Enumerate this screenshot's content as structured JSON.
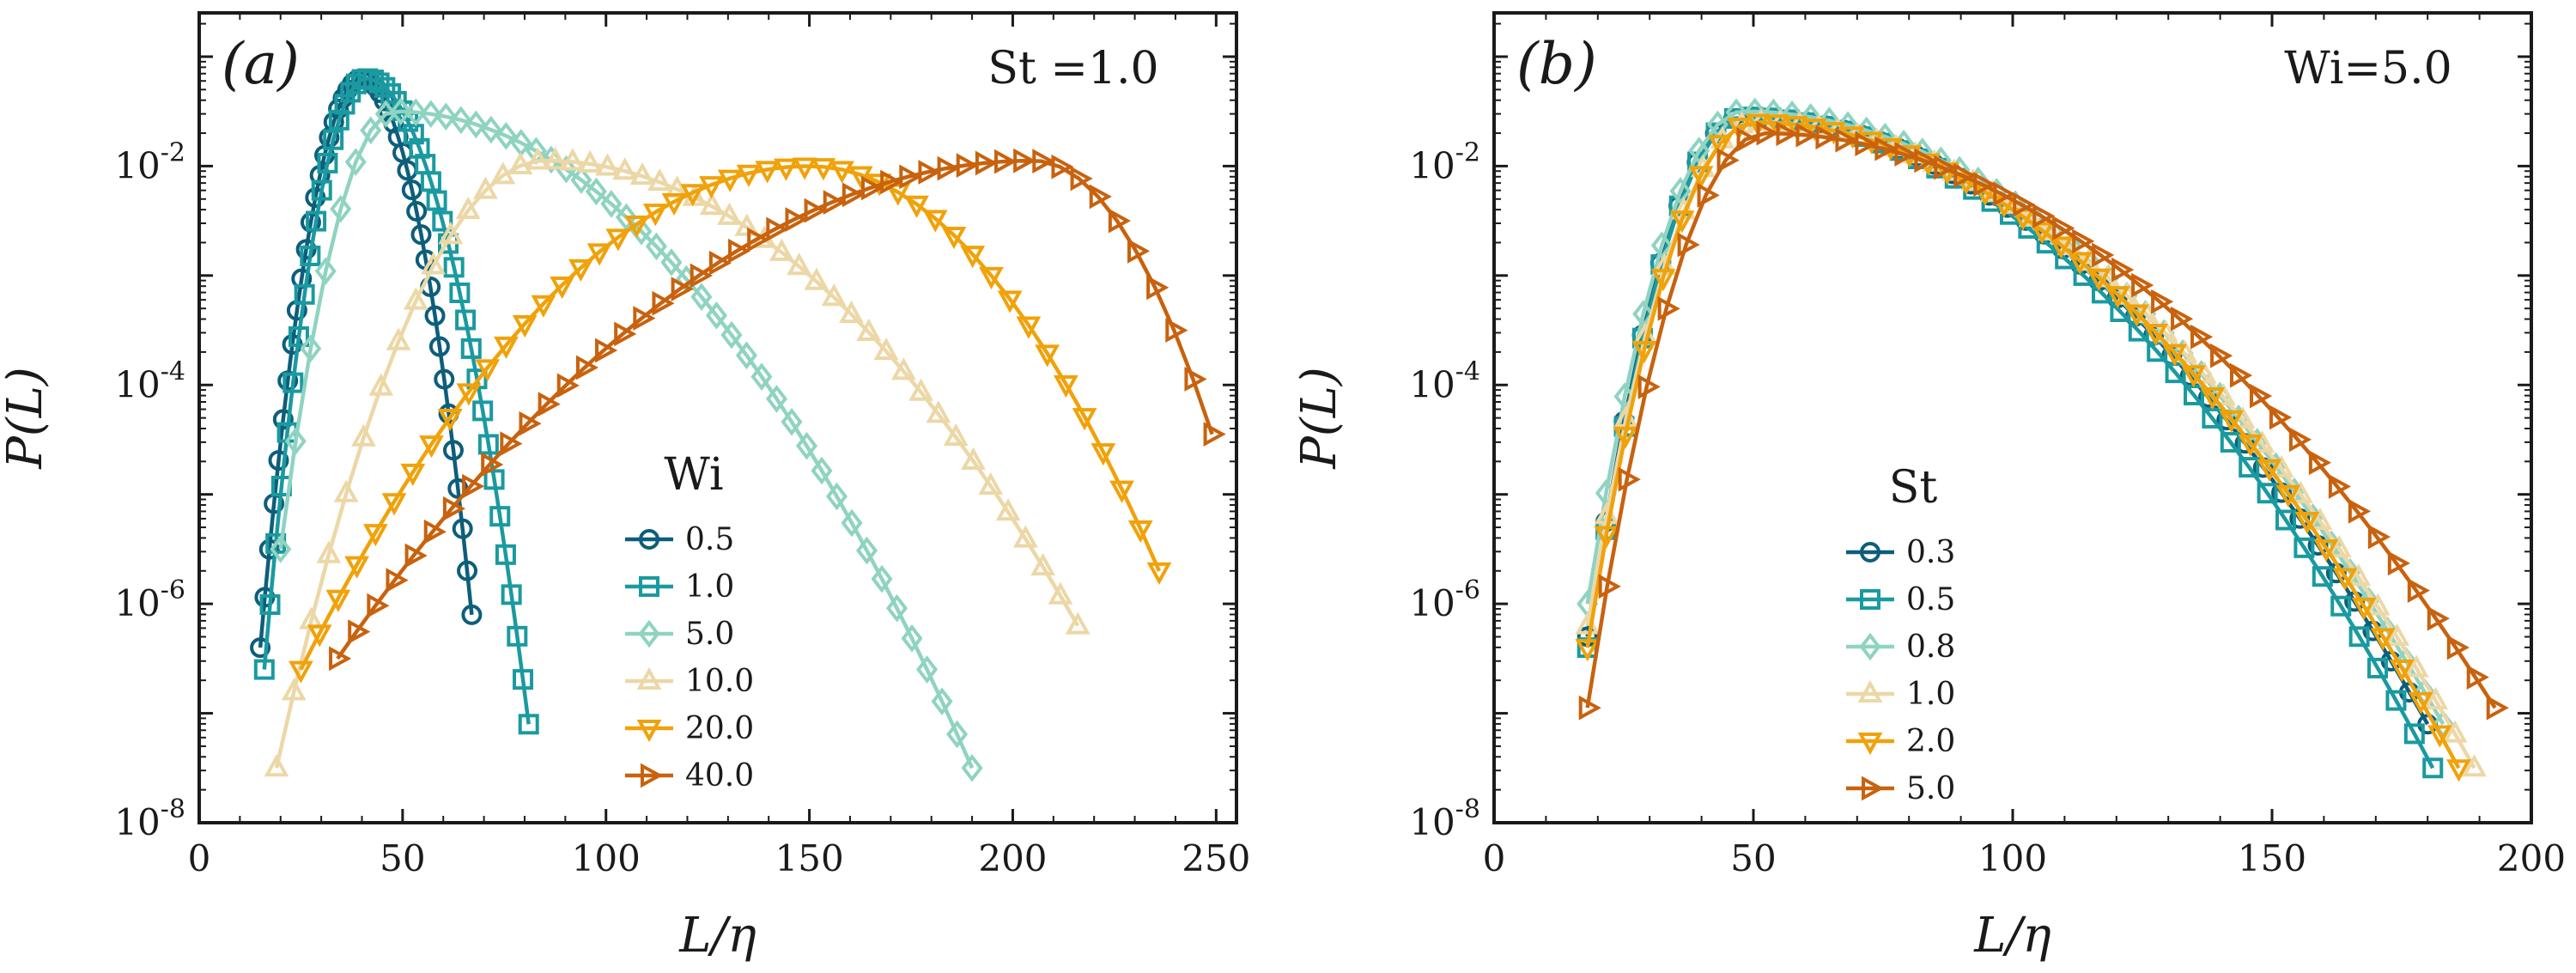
{
  "figure_colors": [
    "#0d5e7a",
    "#1a9aa0",
    "#8fd3c1",
    "#ecd7a6",
    "#f0a20a",
    "#c8620e"
  ],
  "chart_data": [
    {
      "type": "line",
      "panel_label": "(a)",
      "annotation": "St =1.0",
      "xlabel": "L/η",
      "ylabel": "P(L)",
      "y_scale": "log",
      "xlim": [
        0,
        255
      ],
      "ylim_exp": [
        -8,
        -0.6
      ],
      "xticks": [
        "0",
        "50",
        "100",
        "150",
        "200",
        "250"
      ],
      "xtick_values": [
        0,
        50,
        100,
        150,
        200,
        250
      ],
      "yticks": [
        "10^-8",
        "10^-6",
        "10^-4",
        "10^-2"
      ],
      "ytick_exp": [
        -8,
        -6,
        -4,
        -2
      ],
      "legend_title": "Wi",
      "legend_position": "lower-middle",
      "series": [
        {
          "name": "0.5",
          "marker": "circle",
          "color": "#0d5e7a",
          "peak_x": 40,
          "peak_exp": -1.2,
          "min_x": 15,
          "min_exp": -6.4,
          "max_x": 67,
          "max_exp": -6.1
        },
        {
          "name": "1.0",
          "marker": "square",
          "color": "#1a9aa0",
          "peak_x": 41,
          "peak_exp": -1.2,
          "min_x": 16,
          "min_exp": -6.6,
          "max_x": 81,
          "max_exp": -7.1
        },
        {
          "name": "5.0",
          "marker": "diamond",
          "color": "#8fd3c1",
          "peak_x": 48,
          "peak_exp": -1.5,
          "min_x": 20,
          "min_exp": -5.5,
          "max_x": 190,
          "max_exp": -7.5
        },
        {
          "name": "10.0",
          "marker": "triangle-up",
          "color": "#ecd7a6",
          "peak_x": 85,
          "peak_exp": -1.95,
          "min_x": 19,
          "min_exp": -7.5,
          "max_x": 216,
          "max_exp": -6.2
        },
        {
          "name": "20.0",
          "marker": "triangle-down",
          "color": "#f0a20a",
          "peak_x": 150,
          "peak_exp": -2.0,
          "min_x": 25,
          "min_exp": -6.6,
          "max_x": 236,
          "max_exp": -5.7
        },
        {
          "name": "40.0",
          "marker": "triangle-right",
          "color": "#c8620e",
          "peak_x": 205,
          "peak_exp": -1.95,
          "min_x": 34,
          "min_exp": -6.5,
          "max_x": 249,
          "max_exp": -4.45
        }
      ]
    },
    {
      "type": "line",
      "panel_label": "(b)",
      "annotation": "Wi=5.0",
      "xlabel": "L/η",
      "ylabel": "P(L)",
      "y_scale": "log",
      "xlim": [
        0,
        200
      ],
      "ylim_exp": [
        -8,
        -0.6
      ],
      "xticks": [
        "0",
        "50",
        "100",
        "150",
        "200"
      ],
      "xtick_values": [
        0,
        50,
        100,
        150,
        200
      ],
      "yticks": [
        "10^-8",
        "10^-6",
        "10^-4",
        "10^-2"
      ],
      "ytick_exp": [
        -8,
        -6,
        -4,
        -2
      ],
      "legend_title": "St",
      "legend_position": "lower-middle",
      "series": [
        {
          "name": "0.3",
          "marker": "circle",
          "color": "#0d5e7a",
          "peak_x": 48,
          "peak_exp": -1.55,
          "min_x": 18,
          "min_exp": -6.3,
          "max_x": 180,
          "max_exp": -7.1
        },
        {
          "name": "0.5",
          "marker": "square",
          "color": "#1a9aa0",
          "peak_x": 48,
          "peak_exp": -1.55,
          "min_x": 18,
          "min_exp": -6.4,
          "max_x": 181,
          "max_exp": -7.5
        },
        {
          "name": "0.8",
          "marker": "diamond",
          "color": "#8fd3c1",
          "peak_x": 48,
          "peak_exp": -1.5,
          "min_x": 18,
          "min_exp": -6.0,
          "max_x": 183,
          "max_exp": -7.1
        },
        {
          "name": "1.0",
          "marker": "triangle-up",
          "color": "#ecd7a6",
          "peak_x": 50,
          "peak_exp": -1.6,
          "min_x": 18,
          "min_exp": -6.2,
          "max_x": 189,
          "max_exp": -7.5
        },
        {
          "name": "2.0",
          "marker": "triangle-down",
          "color": "#f0a20a",
          "peak_x": 50,
          "peak_exp": -1.6,
          "min_x": 18,
          "min_exp": -6.4,
          "max_x": 186,
          "max_exp": -7.5
        },
        {
          "name": "5.0",
          "marker": "triangle-right",
          "color": "#c8620e",
          "peak_x": 52,
          "peak_exp": -1.7,
          "min_x": 18,
          "min_exp": -6.95,
          "max_x": 193,
          "max_exp": -6.95
        }
      ]
    }
  ]
}
